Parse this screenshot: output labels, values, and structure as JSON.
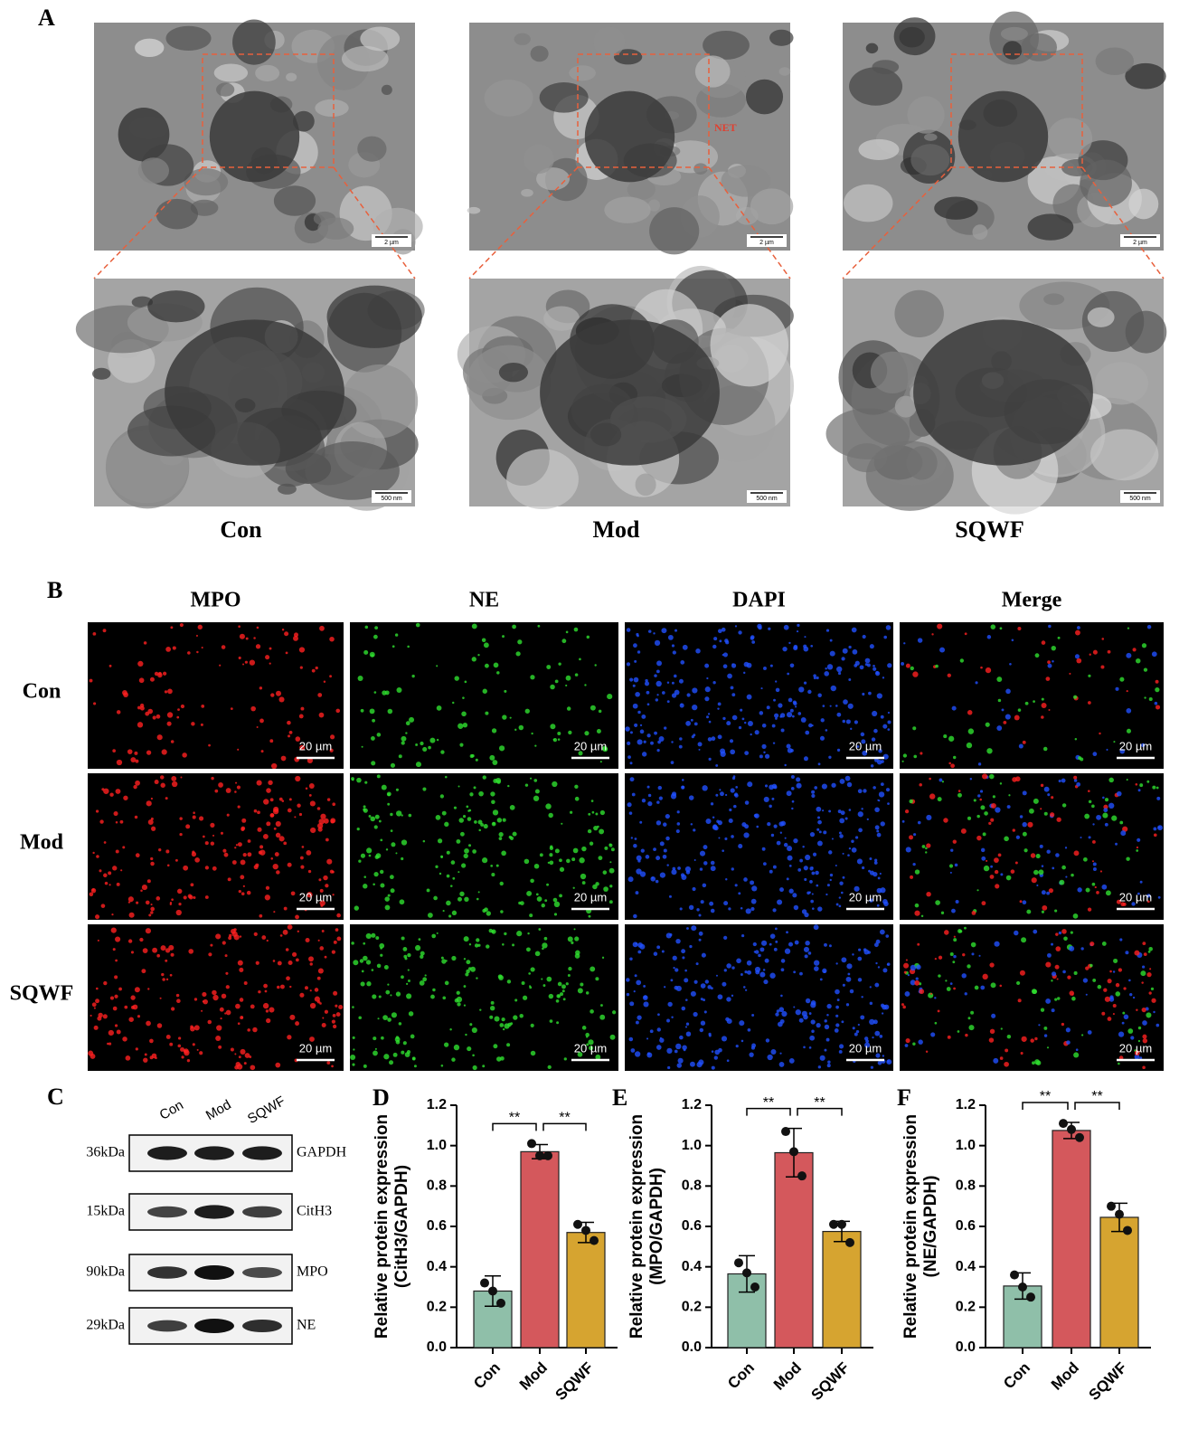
{
  "panel_A": {
    "label": "A",
    "groups": [
      "Con",
      "Mod",
      "SQWF"
    ],
    "scale_top": "2 µm",
    "scale_bottom": "500 nm",
    "annotation": "NET"
  },
  "panel_B": {
    "label": "B",
    "columns": [
      "MPO",
      "NE",
      "DAPI",
      "Merge"
    ],
    "rows": [
      "Con",
      "Mod",
      "SQWF"
    ],
    "scale": "20 µm"
  },
  "panel_C": {
    "label": "C",
    "lanes": [
      "Con",
      "Mod",
      "SQWF"
    ],
    "markers": [
      {
        "size": "36kDa",
        "protein": "GAPDH"
      },
      {
        "size": "15kDa",
        "protein": "CitH3"
      },
      {
        "size": "90kDa",
        "protein": "MPO"
      },
      {
        "size": "29kDa",
        "protein": "NE"
      }
    ]
  },
  "chart_data": [
    {
      "type": "bar",
      "panel_label": "D",
      "ylabel": [
        "Relative protein expression",
        "(CitH3/GAPDH)"
      ],
      "categories": [
        "Con",
        "Mod",
        "SQWF"
      ],
      "colors": [
        "#8fbfa9",
        "#d4585c",
        "#d6a430"
      ],
      "values": [
        0.28,
        0.97,
        0.57
      ],
      "errors": [
        0.075,
        0.035,
        0.05
      ],
      "points": [
        [
          0.32,
          0.28,
          0.22
        ],
        [
          1.01,
          0.95,
          0.95
        ],
        [
          0.61,
          0.58,
          0.53
        ]
      ],
      "ylim": [
        0,
        1.2
      ],
      "yticks": [
        {
          "value": 0,
          "label": "0.0"
        },
        0.2,
        0.4,
        0.6,
        0.8,
        {
          "value": 1,
          "label": "1.0"
        },
        1.2
      ],
      "significance": [
        {
          "categories": [
            "Con",
            "Mod"
          ],
          "label": "**"
        },
        {
          "categories": [
            "Mod",
            "SQWF"
          ],
          "label": "**"
        }
      ]
    },
    {
      "type": "bar",
      "panel_label": "E",
      "ylabel": [
        "Relative protein expression",
        "(MPO/GAPDH)"
      ],
      "categories": [
        "Con",
        "Mod",
        "SQWF"
      ],
      "colors": [
        "#8fbfa9",
        "#d4585c",
        "#d6a430"
      ],
      "values": [
        0.365,
        0.965,
        0.575
      ],
      "errors": [
        0.09,
        0.12,
        0.05
      ],
      "points": [
        [
          0.42,
          0.37,
          0.3
        ],
        [
          1.07,
          0.97,
          0.85
        ],
        [
          0.61,
          0.61,
          0.52
        ]
      ],
      "ylim": [
        0,
        1.2
      ],
      "yticks": [
        {
          "value": 0,
          "label": "0.0"
        },
        0.2,
        0.4,
        0.6,
        0.8,
        {
          "value": 1,
          "label": "1.0"
        },
        1.2
      ],
      "significance": [
        {
          "categories": [
            "Con",
            "Mod"
          ],
          "label": "**"
        },
        {
          "categories": [
            "Mod",
            "SQWF"
          ],
          "label": "**"
        }
      ]
    },
    {
      "type": "bar",
      "panel_label": "F",
      "ylabel": [
        "Relative protein expression",
        "(NE/GAPDH)"
      ],
      "categories": [
        "Con",
        "Mod",
        "SQWF"
      ],
      "colors": [
        "#8fbfa9",
        "#d4585c",
        "#d6a430"
      ],
      "values": [
        0.305,
        1.075,
        0.645
      ],
      "errors": [
        0.065,
        0.04,
        0.07
      ],
      "points": [
        [
          0.36,
          0.3,
          0.25
        ],
        [
          1.11,
          1.08,
          1.04
        ],
        [
          0.7,
          0.66,
          0.58
        ]
      ],
      "ylim": [
        0,
        1.2
      ],
      "yticks": [
        {
          "value": 0,
          "label": "0.0"
        },
        0.2,
        0.4,
        0.6,
        0.8,
        {
          "value": 1,
          "label": "1.0"
        },
        1.2
      ],
      "significance": [
        {
          "categories": [
            "Con",
            "Mod"
          ],
          "label": "**"
        },
        {
          "categories": [
            "Mod",
            "SQWF"
          ],
          "label": "**"
        }
      ]
    }
  ]
}
